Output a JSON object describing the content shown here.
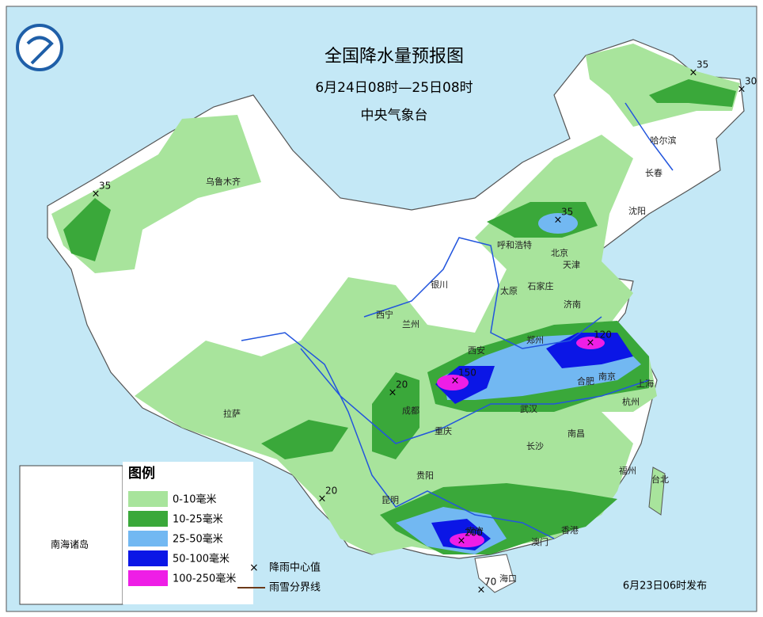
{
  "header": {
    "title": "全国降水量预报图",
    "period": "6月24日08时—25日08时",
    "issuer": "中央气象台"
  },
  "legend": {
    "title": "图例",
    "items": [
      "0-10毫米",
      "10-25毫米",
      "25-50毫米",
      "50-100毫米",
      "100-250毫米"
    ],
    "colors": [
      "#a8e49c",
      "#3aa83a",
      "#72b8f2",
      "#0b16e6",
      "#ee1ee6"
    ],
    "center_label": "降雨中心值",
    "snow_line_label": "雨雪分界线"
  },
  "inset_label": "南海诸岛",
  "issued": "6月23日06时发布",
  "cities": [
    "乌鲁木齐",
    "拉萨",
    "西宁",
    "兰州",
    "银川",
    "呼和浩特",
    "北京",
    "天津",
    "石家庄",
    "太原",
    "济南",
    "郑州",
    "西安",
    "成都",
    "重庆",
    "武汉",
    "合肥",
    "南京",
    "上海",
    "杭州",
    "长沙",
    "南昌",
    "贵阳",
    "昆明",
    "南宁",
    "澳门",
    "香港",
    "海口",
    "福州",
    "台北",
    "沈阳",
    "长春",
    "哈尔滨"
  ],
  "rain_centers": [
    35,
    35,
    30,
    35,
    120,
    150,
    20,
    20,
    200,
    70
  ]
}
